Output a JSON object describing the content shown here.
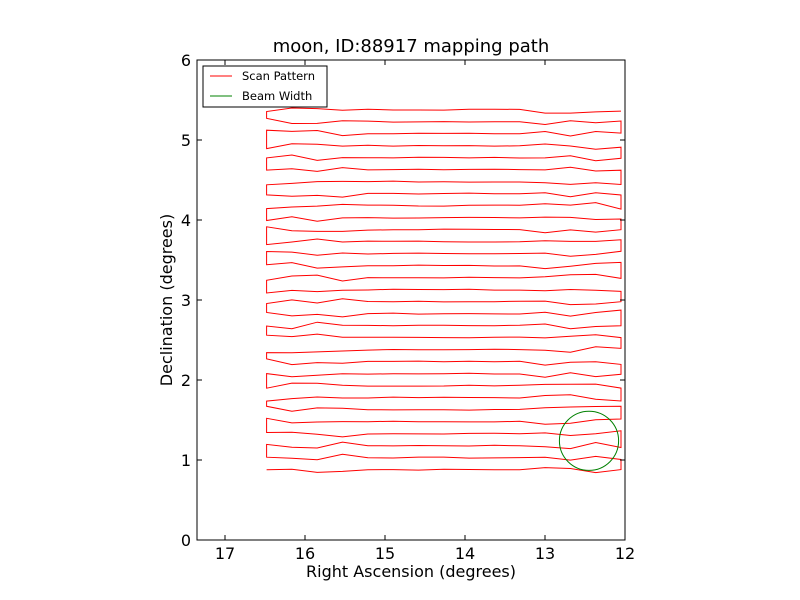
{
  "chart_data": {
    "type": "line",
    "title": "moon, ID:88917 mapping path",
    "xlabel": "Right Ascension (degrees)",
    "ylabel": "Declination (degrees)",
    "xlim": [
      17.35,
      12.0
    ],
    "ylim": [
      0,
      6
    ],
    "x_inverted": true,
    "xticks": [
      17,
      16,
      15,
      14,
      13,
      12
    ],
    "yticks": [
      0,
      1,
      2,
      3,
      4,
      5,
      6
    ],
    "grid": false,
    "legend": {
      "placement": "top-left",
      "entries": [
        {
          "name": "Scan Pattern",
          "color": "#ff0000"
        },
        {
          "name": "Beam Width",
          "color": "#008000"
        }
      ]
    },
    "scan": {
      "name": "Scan Pattern",
      "color": "#ff0000",
      "ra_east": 16.48,
      "ra_west": 12.05,
      "dec_start": 0.88,
      "dec_step": 0.15,
      "n_rows": 31
    },
    "beam": {
      "name": "Beam Width",
      "color": "#008000",
      "center": [
        12.45,
        1.24
      ],
      "radius": 0.37
    }
  }
}
